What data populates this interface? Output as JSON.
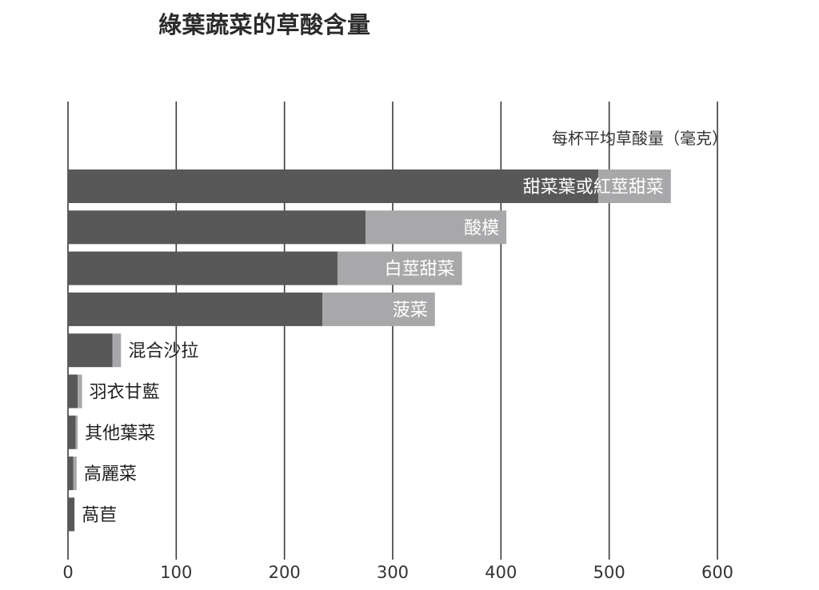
{
  "chart_data": {
    "type": "bar",
    "orientation": "horizontal",
    "stacked": true,
    "title": "綠葉蔬菜的草酸含量",
    "unit_label": "每杯平均草酸量（毫克）",
    "xlim": [
      0,
      600
    ],
    "x_ticks": [
      0,
      100,
      200,
      300,
      400,
      500,
      600
    ],
    "grid": true,
    "categories": [
      "甜菜葉或紅莖甜菜",
      "酸模",
      "白莖甜菜",
      "菠菜",
      "混合沙拉",
      "羽衣甘藍",
      "其他葉菜",
      "高麗菜",
      "萵苣"
    ],
    "series": [
      {
        "values": [
          490,
          275,
          249,
          235,
          41,
          9,
          7,
          5,
          6
        ]
      },
      {
        "values": [
          67,
          130,
          115,
          104,
          8,
          4,
          2,
          3,
          0
        ]
      }
    ],
    "colors": {
      "series": [
        "#585858",
        "#a8a8aa"
      ],
      "grid": "#3a3a3a",
      "label_inside": "#ffffff",
      "label_outside": "#222222",
      "title": "#2b2b2b"
    }
  }
}
